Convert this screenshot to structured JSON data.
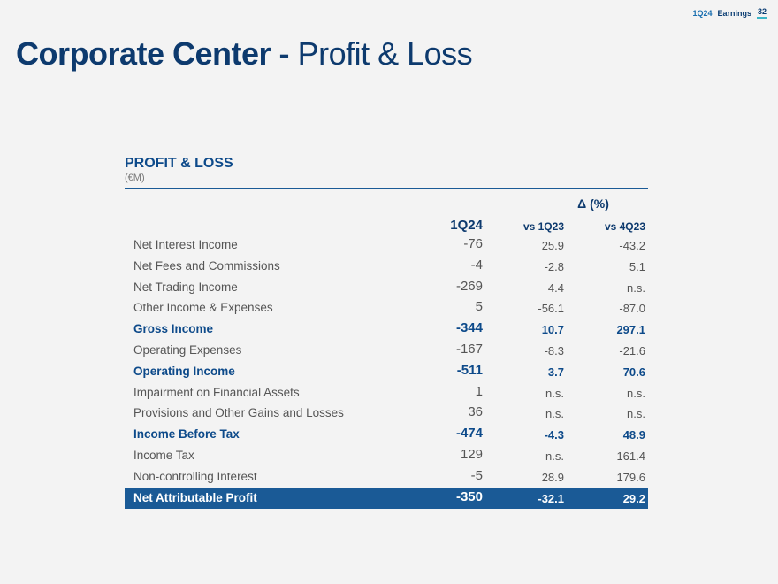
{
  "header": {
    "period": "1Q24",
    "label": "Earnings",
    "page": "32"
  },
  "title": {
    "bold": "Corporate Center -",
    "light": "Profit & Loss"
  },
  "section": {
    "title": "PROFIT & LOSS",
    "unit": "(€M)"
  },
  "table": {
    "delta_header": "Δ (%)",
    "col1": "1Q24",
    "col2": "vs 1Q23",
    "col3": "vs 4Q23",
    "rows": [
      {
        "label": "Net Interest Income",
        "v1": "-76",
        "v2": "25.9",
        "v3": "-43.2"
      },
      {
        "label": "Net Fees and Commissions",
        "v1": "-4",
        "v2": "-2.8",
        "v3": "5.1"
      },
      {
        "label": "Net Trading Income",
        "v1": "-269",
        "v2": "4.4",
        "v3": "n.s."
      },
      {
        "label": "Other Income & Expenses",
        "v1": "5",
        "v2": "-56.1",
        "v3": "-87.0"
      },
      {
        "label": "Gross Income",
        "v1": "-344",
        "v2": "10.7",
        "v3": "297.1"
      },
      {
        "label": "Operating Expenses",
        "v1": "-167",
        "v2": "-8.3",
        "v3": "-21.6"
      },
      {
        "label": "Operating Income",
        "v1": "-511",
        "v2": "3.7",
        "v3": "70.6"
      },
      {
        "label": "Impairment on Financial Assets",
        "v1": "1",
        "v2": "n.s.",
        "v3": "n.s."
      },
      {
        "label": "Provisions and Other Gains and Losses",
        "v1": "36",
        "v2": "n.s.",
        "v3": "n.s."
      },
      {
        "label": "Income Before Tax",
        "v1": "-474",
        "v2": "-4.3",
        "v3": "48.9"
      },
      {
        "label": "Income Tax",
        "v1": "129",
        "v2": "n.s.",
        "v3": "161.4"
      },
      {
        "label": "Non-controlling Interest",
        "v1": "-5",
        "v2": "28.9",
        "v3": "179.6"
      },
      {
        "label": "Net Attributable Profit",
        "v1": "-350",
        "v2": "-32.1",
        "v3": "29.2"
      }
    ]
  }
}
